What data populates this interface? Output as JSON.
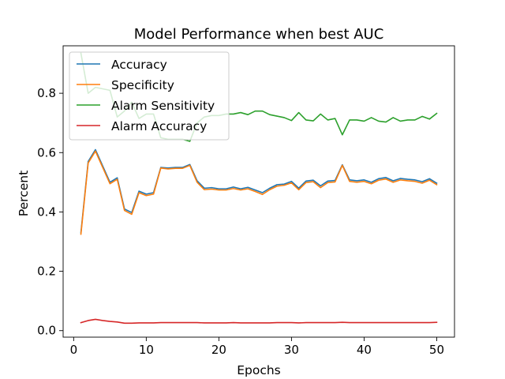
{
  "chart_data": {
    "type": "line",
    "title": "Model Performance when best AUC",
    "xlabel": "Epochs",
    "ylabel": "Percent",
    "xlim": [
      -1.45,
      52.45
    ],
    "ylim": [
      -0.022,
      0.96
    ],
    "xticks": [
      0,
      10,
      20,
      30,
      40,
      50
    ],
    "yticks": [
      0.0,
      0.2,
      0.4,
      0.6,
      0.8
    ],
    "ytick_labels": [
      "0.0",
      "0.2",
      "0.4",
      "0.6",
      "0.8"
    ],
    "grid": false,
    "legend_position": "upper left",
    "x": [
      1,
      2,
      3,
      4,
      5,
      6,
      7,
      8,
      9,
      10,
      11,
      12,
      13,
      14,
      15,
      16,
      17,
      18,
      19,
      20,
      21,
      22,
      23,
      24,
      25,
      26,
      27,
      28,
      29,
      30,
      31,
      32,
      33,
      34,
      35,
      36,
      37,
      38,
      39,
      40,
      41,
      42,
      43,
      44,
      45,
      46,
      47,
      48,
      49,
      50
    ],
    "series": [
      {
        "name": "Accuracy",
        "color": "#1f77b4",
        "values": [
          0.33,
          0.57,
          0.61,
          0.555,
          0.5,
          0.515,
          0.41,
          0.398,
          0.47,
          0.46,
          0.465,
          0.55,
          0.548,
          0.55,
          0.55,
          0.56,
          0.505,
          0.48,
          0.482,
          0.478,
          0.478,
          0.484,
          0.478,
          0.483,
          0.474,
          0.465,
          0.48,
          0.492,
          0.494,
          0.503,
          0.48,
          0.504,
          0.507,
          0.488,
          0.504,
          0.506,
          0.559,
          0.508,
          0.505,
          0.508,
          0.5,
          0.512,
          0.516,
          0.505,
          0.513,
          0.51,
          0.508,
          0.502,
          0.512,
          0.497
        ]
      },
      {
        "name": "Specificity",
        "color": "#ff7f0e",
        "values": [
          0.325,
          0.565,
          0.605,
          0.55,
          0.495,
          0.51,
          0.405,
          0.392,
          0.465,
          0.455,
          0.46,
          0.548,
          0.545,
          0.547,
          0.547,
          0.557,
          0.5,
          0.475,
          0.477,
          0.474,
          0.474,
          0.479,
          0.474,
          0.478,
          0.469,
          0.459,
          0.475,
          0.487,
          0.49,
          0.498,
          0.475,
          0.499,
          0.502,
          0.482,
          0.499,
          0.501,
          0.557,
          0.503,
          0.5,
          0.503,
          0.495,
          0.507,
          0.511,
          0.5,
          0.508,
          0.505,
          0.503,
          0.497,
          0.507,
          0.492
        ]
      },
      {
        "name": "Alarm Sensitivity",
        "color": "#2ca02c",
        "values": [
          0.935,
          0.8,
          0.82,
          0.815,
          0.81,
          0.72,
          0.74,
          0.77,
          0.715,
          0.73,
          0.73,
          0.65,
          0.645,
          0.645,
          0.645,
          0.638,
          0.7,
          0.72,
          0.725,
          0.725,
          0.73,
          0.73,
          0.735,
          0.728,
          0.74,
          0.74,
          0.728,
          0.723,
          0.718,
          0.708,
          0.735,
          0.71,
          0.707,
          0.73,
          0.71,
          0.715,
          0.66,
          0.71,
          0.71,
          0.706,
          0.718,
          0.706,
          0.703,
          0.718,
          0.706,
          0.71,
          0.71,
          0.722,
          0.713,
          0.732
        ]
      },
      {
        "name": "Alarm Accuracy",
        "color": "#d62728",
        "values": [
          0.027,
          0.034,
          0.038,
          0.034,
          0.031,
          0.029,
          0.025,
          0.025,
          0.026,
          0.026,
          0.026,
          0.027,
          0.027,
          0.027,
          0.027,
          0.027,
          0.027,
          0.026,
          0.026,
          0.026,
          0.026,
          0.027,
          0.026,
          0.026,
          0.026,
          0.026,
          0.026,
          0.027,
          0.027,
          0.027,
          0.026,
          0.027,
          0.027,
          0.027,
          0.027,
          0.027,
          0.028,
          0.027,
          0.027,
          0.027,
          0.027,
          0.027,
          0.027,
          0.027,
          0.027,
          0.027,
          0.027,
          0.027,
          0.027,
          0.028
        ]
      }
    ]
  }
}
